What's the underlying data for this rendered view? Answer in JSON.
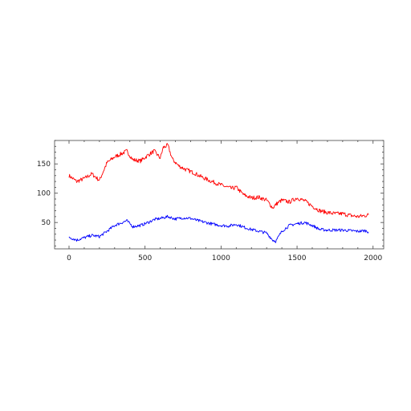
{
  "chart_data": {
    "type": "line",
    "title": "",
    "xlabel": "",
    "ylabel": "",
    "xlim": [
      -95,
      2070
    ],
    "ylim": [
      5,
      190
    ],
    "x_ticks": [
      0,
      500,
      1000,
      1500,
      2000
    ],
    "y_ticks": [
      50,
      100,
      150
    ],
    "grid": false,
    "legend": "none",
    "series": [
      {
        "color": "#ff0000",
        "x": [
          0,
          50,
          100,
          150,
          200,
          250,
          300,
          350,
          380,
          420,
          470,
          520,
          560,
          600,
          620,
          650,
          680,
          720,
          770,
          820,
          870,
          920,
          970,
          1020,
          1070,
          1100,
          1150,
          1200,
          1250,
          1300,
          1340,
          1370,
          1400,
          1450,
          1500,
          1550,
          1600,
          1650,
          1700,
          1750,
          1800,
          1850,
          1900,
          1950,
          1970
        ],
        "values": [
          130,
          120,
          125,
          133,
          122,
          152,
          162,
          168,
          172,
          157,
          155,
          165,
          172,
          160,
          178,
          182,
          158,
          147,
          140,
          135,
          128,
          122,
          117,
          112,
          108,
          110,
          97,
          92,
          93,
          88,
          75,
          83,
          88,
          85,
          92,
          87,
          78,
          70,
          67,
          65,
          65,
          62,
          60,
          62,
          63
        ]
      },
      {
        "color": "#0000ff",
        "x": [
          0,
          50,
          100,
          150,
          200,
          250,
          300,
          350,
          380,
          420,
          470,
          520,
          560,
          600,
          650,
          700,
          750,
          800,
          850,
          900,
          950,
          1000,
          1050,
          1100,
          1150,
          1200,
          1250,
          1300,
          1340,
          1360,
          1400,
          1450,
          1500,
          1550,
          1600,
          1650,
          1700,
          1750,
          1800,
          1850,
          1900,
          1950,
          1970
        ],
        "values": [
          25,
          20,
          24,
          28,
          26,
          35,
          45,
          50,
          53,
          43,
          45,
          50,
          55,
          57,
          60,
          56,
          58,
          57,
          53,
          50,
          47,
          45,
          44,
          47,
          42,
          38,
          35,
          32,
          20,
          18,
          35,
          45,
          48,
          50,
          45,
          38,
          37,
          37,
          37,
          36,
          35,
          36,
          34
        ]
      }
    ]
  }
}
